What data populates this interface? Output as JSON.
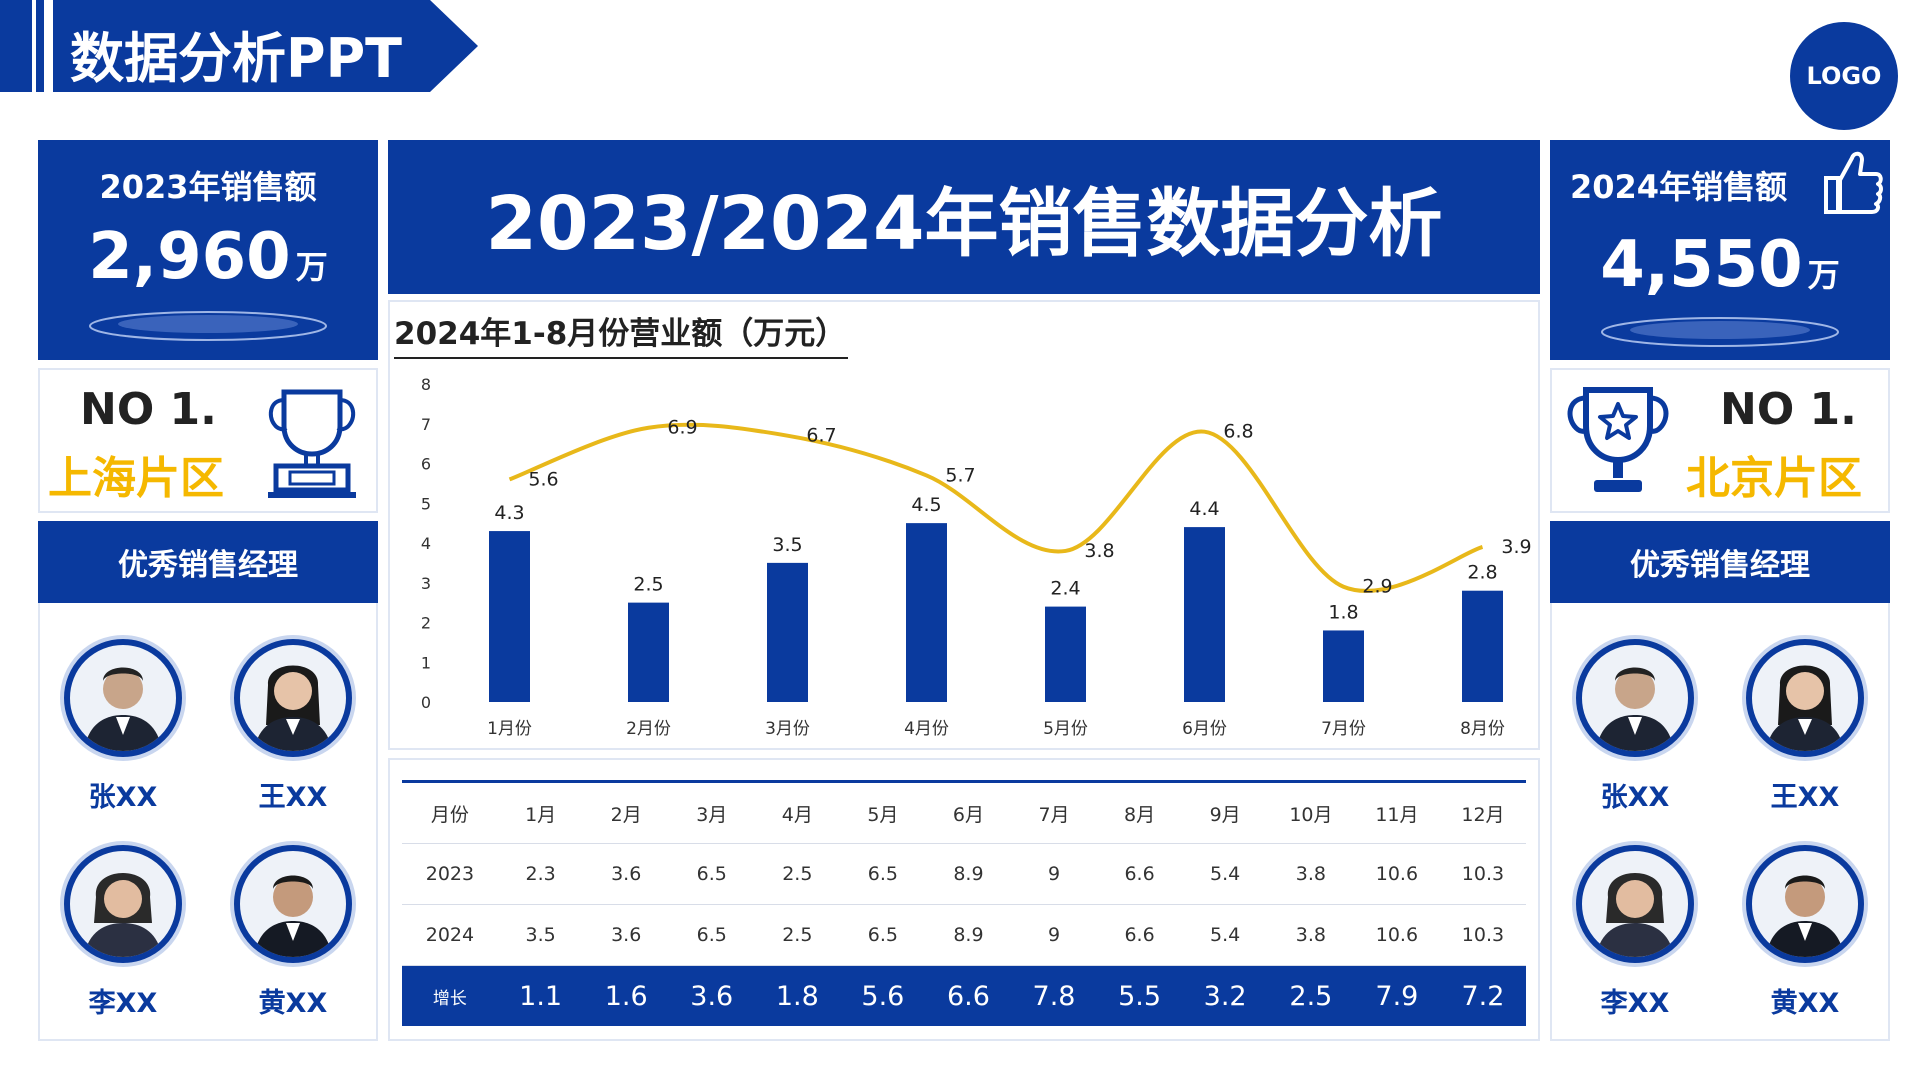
{
  "header": {
    "title": "数据分析PPT",
    "logo": "LOGO"
  },
  "main_title": "2023/2024年销售数据分析",
  "left": {
    "sales_label": "2023年销售额",
    "sales_value": "2,960",
    "sales_unit": "万",
    "rank": "NO 1.",
    "region": "上海片区",
    "managers_title": "优秀销售经理",
    "managers": [
      "张XX",
      "王XX",
      "李XX",
      "黄XX"
    ]
  },
  "right": {
    "sales_label": "2024年销售额",
    "sales_value": "4,550",
    "sales_unit": "万",
    "rank": "NO 1.",
    "region": "北京片区",
    "managers_title": "优秀销售经理",
    "managers": [
      "张XX",
      "王XX",
      "李XX",
      "黄XX"
    ]
  },
  "colors": {
    "primary": "#0a3a9e",
    "accent": "#f5b800",
    "line": "#e8b81a"
  },
  "chart_data": {
    "type": "bar",
    "title": "2024年1-8月份营业额（万元）",
    "categories": [
      "1月份",
      "2月份",
      "3月份",
      "4月份",
      "5月份",
      "6月份",
      "7月份",
      "8月份"
    ],
    "series": [
      {
        "name": "bar",
        "type": "bar",
        "values": [
          4.3,
          2.5,
          3.5,
          4.5,
          2.4,
          4.4,
          1.8,
          2.8
        ]
      },
      {
        "name": "line",
        "type": "line",
        "values": [
          5.6,
          6.9,
          6.7,
          5.7,
          3.8,
          6.8,
          2.9,
          3.9
        ]
      }
    ],
    "yticks": [
      0,
      1,
      2,
      3,
      4,
      5,
      6,
      7,
      8
    ],
    "ylim": [
      0,
      8
    ],
    "xlabel": "",
    "ylabel": ""
  },
  "table": {
    "header": [
      "月份",
      "1月",
      "2月",
      "3月",
      "4月",
      "5月",
      "6月",
      "7月",
      "8月",
      "9月",
      "10月",
      "11月",
      "12月"
    ],
    "rows": [
      [
        "2023",
        "2.3",
        "3.6",
        "6.5",
        "2.5",
        "6.5",
        "8.9",
        "9",
        "6.6",
        "5.4",
        "3.8",
        "10.6",
        "10.3"
      ],
      [
        "2024",
        "3.5",
        "3.6",
        "6.5",
        "2.5",
        "6.5",
        "8.9",
        "9",
        "6.6",
        "5.4",
        "3.8",
        "10.6",
        "10.3"
      ]
    ],
    "growth": [
      "增长",
      "1.1",
      "1.6",
      "3.6",
      "1.8",
      "5.6",
      "6.6",
      "7.8",
      "5.5",
      "3.2",
      "2.5",
      "7.9",
      "7.2"
    ]
  }
}
